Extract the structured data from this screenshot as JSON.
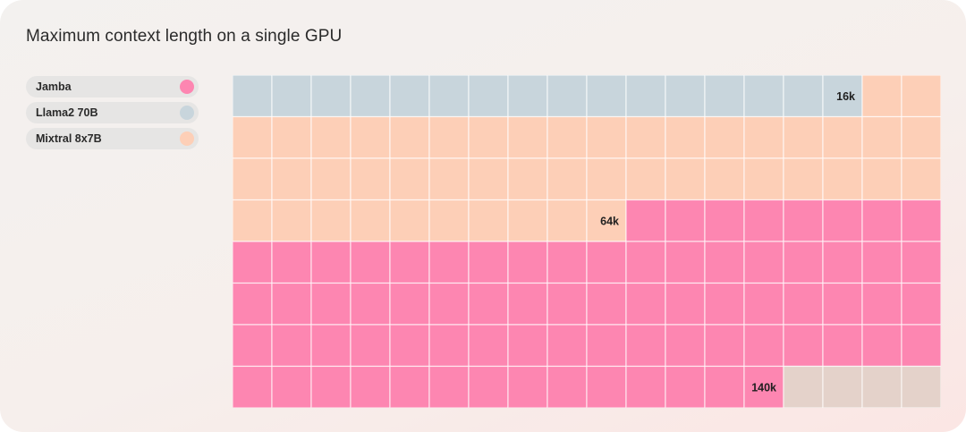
{
  "chart_data": {
    "type": "waffle",
    "title": "Maximum context length on a single GPU",
    "grid": {
      "columns": 18,
      "rows": 8
    },
    "series": [
      {
        "name": "Jamba",
        "value": 140,
        "label": "140k",
        "color": "#fd86b1"
      },
      {
        "name": "Llama2 70B",
        "value": 16,
        "label": "16k",
        "color": "#c8d5dc"
      },
      {
        "name": "Mixtral 8x7B",
        "value": 64,
        "label": "64k",
        "color": "#fdcfb7"
      }
    ],
    "empty_color": "#e4d2ca",
    "legend_placement": "top-left"
  }
}
